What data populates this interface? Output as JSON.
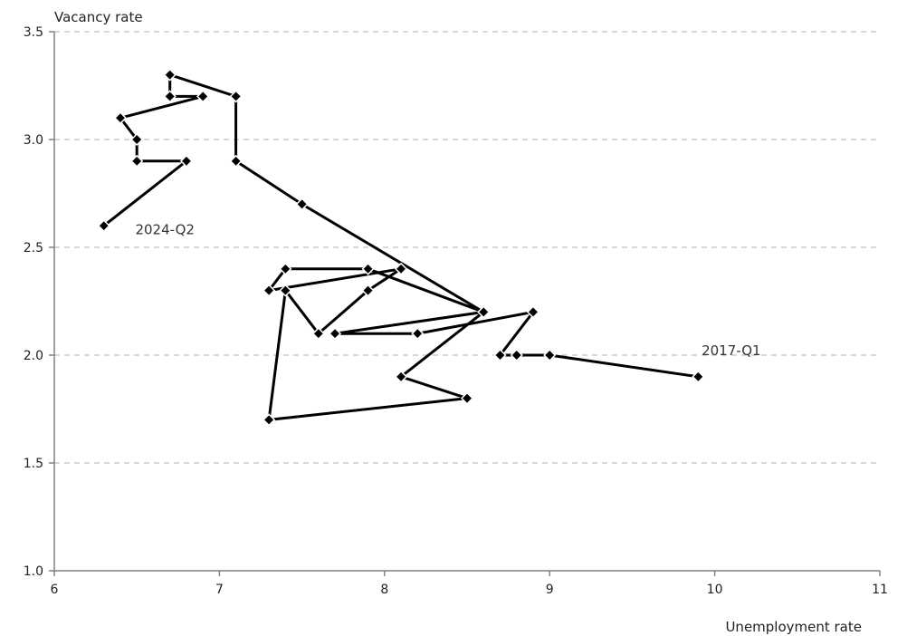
{
  "chart_data": {
    "type": "line",
    "xlabel": "Unemployment rate",
    "ylabel": "Vacancy rate",
    "xlim": [
      6,
      11
    ],
    "ylim": [
      1.0,
      3.5
    ],
    "x_ticks": [
      6,
      7,
      8,
      9,
      10,
      11
    ],
    "y_ticks": [
      "1.0",
      "1.5",
      "2.0",
      "2.5",
      "3.0",
      "3.5"
    ],
    "grid": "horizontal dashed",
    "colors": {
      "line": "#000000",
      "grid": "#bfbfbf",
      "axis": "#808080"
    },
    "series": [
      {
        "points": [
          [
            9.9,
            1.9
          ],
          [
            9.0,
            2.0
          ],
          [
            8.8,
            2.0
          ],
          [
            8.7,
            2.0
          ],
          [
            8.9,
            2.2
          ],
          [
            8.2,
            2.1
          ],
          [
            7.7,
            2.1
          ],
          [
            8.6,
            2.2
          ],
          [
            7.9,
            2.4
          ],
          [
            7.4,
            2.4
          ],
          [
            7.3,
            2.3
          ],
          [
            8.1,
            2.4
          ],
          [
            7.9,
            2.3
          ],
          [
            7.6,
            2.1
          ],
          [
            7.4,
            2.3
          ],
          [
            7.3,
            1.7
          ],
          [
            8.5,
            1.8
          ],
          [
            8.1,
            1.9
          ],
          [
            8.6,
            2.2
          ],
          [
            7.5,
            2.7
          ],
          [
            7.1,
            2.9
          ],
          [
            7.1,
            3.2
          ],
          [
            6.7,
            3.3
          ],
          [
            6.7,
            3.2
          ],
          [
            6.9,
            3.2
          ],
          [
            6.4,
            3.1
          ],
          [
            6.5,
            3.0
          ],
          [
            6.5,
            2.9
          ],
          [
            6.8,
            2.9
          ],
          [
            6.3,
            2.6
          ]
        ]
      }
    ],
    "annotations": [
      {
        "text": "2017-Q1",
        "x": 10.1,
        "y": 2.0
      },
      {
        "text": "2024-Q2",
        "x": 6.67,
        "y": 2.56
      }
    ]
  }
}
